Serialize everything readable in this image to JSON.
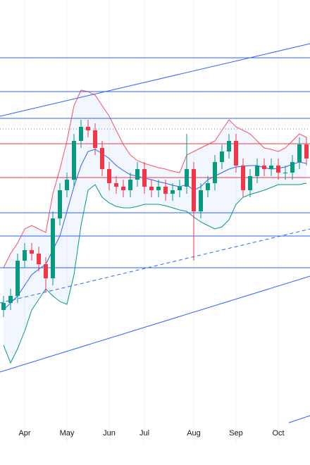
{
  "chart_data": {
    "type": "candlestick",
    "categories": [
      null,
      null,
      null,
      "Apr",
      null,
      null,
      null,
      null,
      null,
      "May",
      null,
      null,
      null,
      null,
      null,
      "Jun",
      null,
      null,
      null,
      null,
      "Jul",
      null,
      null,
      null,
      null,
      null,
      null,
      "Aug",
      null,
      null,
      null,
      null,
      null,
      "Sep",
      null,
      null,
      null,
      null,
      null,
      "Oct",
      null,
      null,
      null,
      null
    ],
    "open": [
      18,
      19,
      20,
      25,
      26.5,
      26,
      24.5,
      22.5,
      31,
      35,
      36.5,
      42,
      44,
      43.5,
      41,
      38,
      36,
      35.5,
      35,
      36.5,
      38,
      35.5,
      35,
      35.5,
      34.5,
      35,
      35.5,
      38,
      32,
      35,
      36,
      39,
      40.5,
      42,
      38.5,
      35,
      37,
      38.5,
      38,
      38.5,
      37.5,
      37.5,
      39,
      41.5
    ],
    "high": [
      20,
      21,
      26,
      27.5,
      27.5,
      27,
      25.5,
      32,
      36,
      37.5,
      43,
      45,
      45,
      44.5,
      42,
      39,
      37,
      36.5,
      37.5,
      39,
      39,
      36.5,
      36.5,
      36.5,
      36,
      36.5,
      43,
      39,
      36,
      37,
      40,
      41.5,
      43,
      43,
      39.5,
      38,
      39.5,
      39.5,
      39.5,
      39.5,
      38.5,
      40,
      42.5,
      42.5
    ],
    "low": [
      17,
      18,
      19,
      24,
      25,
      23.5,
      20.5,
      21.5,
      30,
      34,
      35.5,
      41,
      42.5,
      40,
      37,
      35,
      34.5,
      34,
      34,
      35.5,
      34.5,
      34,
      34,
      33.5,
      33.5,
      34,
      34.5,
      25,
      31,
      34,
      35,
      38,
      39.5,
      37.5,
      34,
      34,
      36,
      37,
      37,
      36.5,
      36.5,
      36.5,
      38,
      38.5
    ],
    "close": [
      19,
      20,
      25,
      26.5,
      26,
      24.5,
      22.5,
      31,
      35,
      36.5,
      42,
      44,
      43.5,
      41,
      38,
      36,
      35.5,
      35,
      36.5,
      38,
      35.5,
      35,
      35.5,
      34.5,
      35,
      35.5,
      38,
      32,
      35,
      36,
      39,
      40.5,
      42,
      38.5,
      35,
      37,
      38.5,
      38,
      38.5,
      37.5,
      37.5,
      39,
      41.5,
      39.5
    ],
    "up_color": "#089981",
    "down_color": "#f23645",
    "bands": {
      "upper": [
        24,
        26,
        27.5,
        29.5,
        30,
        29.5,
        29,
        34.5,
        38,
        42,
        47,
        49.2,
        49,
        48.5,
        47,
        45.5,
        43.5,
        41.5,
        40,
        39.2,
        38.8,
        38.5,
        38.2,
        38,
        37.7,
        37.5,
        40,
        40.5,
        41,
        41.5,
        42,
        43.5,
        45,
        44,
        43.5,
        43,
        42,
        41,
        40.8,
        40.5,
        41,
        42,
        43,
        42.5
      ],
      "middle": [
        18,
        19,
        20,
        21.5,
        23,
        23.8,
        24.5,
        26.5,
        28.5,
        32,
        35.5,
        38.5,
        40.5,
        40.8,
        40.2,
        39.5,
        38.5,
        37.8,
        37.2,
        37,
        36.7,
        36.5,
        36.2,
        36,
        35.7,
        35.5,
        35.8,
        35,
        35.5,
        36.5,
        37,
        37.5,
        38,
        38.3,
        38.4,
        38.5,
        38.5,
        38.2,
        38,
        38.1,
        38.3,
        38.7,
        39,
        38.8
      ],
      "lower": [
        13,
        10.5,
        12.5,
        15,
        18,
        19.5,
        21,
        20,
        19.2,
        18.8,
        23,
        30,
        35,
        35.8,
        34,
        33.2,
        32.7,
        32.5,
        32.5,
        32.7,
        33,
        33,
        33,
        32.8,
        32.5,
        32.2,
        32,
        31.2,
        30.5,
        30,
        29.5,
        29.8,
        30.8,
        33,
        34,
        34.4,
        34.7,
        35,
        35.4,
        35.8,
        35.8,
        35.8,
        35.8,
        36
      ],
      "upper_color": "#f7525f",
      "middle_color": "#2962ff",
      "lower_color": "#089981",
      "fill_color": "#2962ff"
    },
    "levels": [
      {
        "value": 53.8,
        "color": "#2962ff",
        "style": "solid"
      },
      {
        "value": 49,
        "color": "#2962ff",
        "style": "solid"
      },
      {
        "value": 45.2,
        "color": "#2962ff",
        "style": "solid"
      },
      {
        "value": 43.7,
        "color": "#787b86",
        "style": "dotted"
      },
      {
        "value": 41.6,
        "color": "#f23645",
        "style": "solid"
      },
      {
        "value": 36.8,
        "color": "#f23645",
        "style": "solid"
      },
      {
        "value": 31.8,
        "color": "#2962ff",
        "style": "solid"
      },
      {
        "value": 28.5,
        "color": "#2962ff",
        "style": "solid"
      },
      {
        "value": 24,
        "color": "#2962ff",
        "style": "solid"
      }
    ],
    "trendlines": [
      {
        "x": [
          -0.5,
          43.5
        ],
        "y": [
          45.5,
          55.8
        ],
        "color": "#2962ff",
        "style": "solid"
      },
      {
        "x": [
          -0.5,
          43.5
        ],
        "y": [
          19,
          29.5
        ],
        "color": "#2962ff",
        "style": "dashed"
      },
      {
        "x": [
          -0.5,
          43.5
        ],
        "y": [
          9.2,
          22.8
        ],
        "color": "#2962ff",
        "style": "solid"
      },
      {
        "x": [
          40.5,
          43.5
        ],
        "y": [
          2,
          3
        ],
        "color": "#2962ff",
        "style": "solid"
      }
    ],
    "xlim": [
      -0.5,
      43.5
    ],
    "ylim": [
      0,
      62
    ],
    "grid": true
  }
}
